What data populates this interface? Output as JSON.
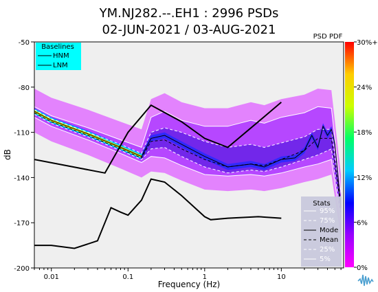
{
  "chart_data": {
    "type": "heatmap",
    "title_line1": "YM.NJ282.--.EH1 : 2996 PSDs",
    "title_line2": "02-JUN-2021 / 03-AUG-2021",
    "xlabel": "Frequency (Hz)",
    "ylabel": "dB",
    "x_scale": "log",
    "xlim": [
      0.006,
      65
    ],
    "ylim": [
      -200,
      -50
    ],
    "x_ticks": [
      {
        "value": 0.01,
        "label": "0.01"
      },
      {
        "value": 0.1,
        "label": "0.1"
      },
      {
        "value": 1,
        "label": "1"
      },
      {
        "value": 10,
        "label": "10"
      }
    ],
    "y_ticks": [
      {
        "value": -50,
        "label": "-50"
      },
      {
        "value": -80,
        "label": "-80"
      },
      {
        "value": -110,
        "label": "-110"
      },
      {
        "value": -140,
        "label": "-140"
      },
      {
        "value": -170,
        "label": "-170"
      },
      {
        "value": -200,
        "label": "-200"
      }
    ],
    "colorbar": {
      "label": "PSD PDF",
      "ticks": [
        "0%",
        "6%",
        "12%",
        "18%",
        "24%",
        "30%+"
      ],
      "stops": [
        "#ff00ff",
        "#9900ff",
        "#0000ff",
        "#00ccff",
        "#00ff66",
        "#ccff00",
        "#ffcc00",
        "#ff0000"
      ]
    },
    "baselines": {
      "title": "Baselines",
      "items": [
        "HNM",
        "LNM"
      ],
      "HNM": [
        [
          0.006,
          -128
        ],
        [
          0.05,
          -137
        ],
        [
          0.1,
          -110
        ],
        [
          0.2,
          -92
        ],
        [
          0.5,
          -103
        ],
        [
          1,
          -114
        ],
        [
          2,
          -120
        ],
        [
          5,
          -103
        ],
        [
          10,
          -90
        ]
      ],
      "LNM": [
        [
          0.006,
          -185
        ],
        [
          0.01,
          -185
        ],
        [
          0.02,
          -187
        ],
        [
          0.04,
          -182
        ],
        [
          0.06,
          -160
        ],
        [
          0.08,
          -163
        ],
        [
          0.1,
          -165
        ],
        [
          0.15,
          -155
        ],
        [
          0.2,
          -141
        ],
        [
          0.3,
          -143
        ],
        [
          0.5,
          -152
        ],
        [
          1,
          -166
        ],
        [
          1.2,
          -168
        ],
        [
          2,
          -167
        ],
        [
          5,
          -166
        ],
        [
          10,
          -167
        ]
      ]
    },
    "stats": {
      "title": "Stats",
      "items": [
        "95%",
        "75%",
        "Mode",
        "Mean",
        "25%",
        "5%"
      ]
    },
    "series": [
      {
        "name": "95%",
        "style": "solid-white",
        "values": [
          [
            0.006,
            -93
          ],
          [
            0.01,
            -99
          ],
          [
            0.03,
            -107
          ],
          [
            0.08,
            -115
          ],
          [
            0.15,
            -120
          ],
          [
            0.2,
            -100
          ],
          [
            0.3,
            -96
          ],
          [
            0.5,
            -102
          ],
          [
            1,
            -106
          ],
          [
            2,
            -106
          ],
          [
            4,
            -102
          ],
          [
            6,
            -104
          ],
          [
            10,
            -100
          ],
          [
            20,
            -97
          ],
          [
            30,
            -93
          ],
          [
            45,
            -94
          ],
          [
            60,
            -150
          ]
        ]
      },
      {
        "name": "75%",
        "style": "dashed-white",
        "values": [
          [
            0.006,
            -95
          ],
          [
            0.01,
            -101
          ],
          [
            0.03,
            -110
          ],
          [
            0.08,
            -118
          ],
          [
            0.15,
            -124
          ],
          [
            0.2,
            -110
          ],
          [
            0.3,
            -107
          ],
          [
            0.5,
            -110
          ],
          [
            1,
            -116
          ],
          [
            2,
            -120
          ],
          [
            4,
            -118
          ],
          [
            6,
            -120
          ],
          [
            10,
            -117
          ],
          [
            20,
            -113
          ],
          [
            30,
            -108
          ],
          [
            45,
            -108
          ],
          [
            60,
            -155
          ]
        ]
      },
      {
        "name": "Mode",
        "style": "solid-black",
        "values": [
          [
            0.006,
            -96
          ],
          [
            0.01,
            -102
          ],
          [
            0.03,
            -111
          ],
          [
            0.08,
            -120
          ],
          [
            0.15,
            -126
          ],
          [
            0.2,
            -114
          ],
          [
            0.3,
            -112
          ],
          [
            0.5,
            -118
          ],
          [
            1,
            -126
          ],
          [
            2,
            -133
          ],
          [
            4,
            -131
          ],
          [
            6,
            -133
          ],
          [
            10,
            -128
          ],
          [
            15,
            -127
          ],
          [
            20,
            -122
          ],
          [
            25,
            -112
          ],
          [
            30,
            -120
          ],
          [
            35,
            -106
          ],
          [
            40,
            -112
          ],
          [
            45,
            -108
          ],
          [
            50,
            -118
          ],
          [
            60,
            -160
          ]
        ]
      },
      {
        "name": "Mean",
        "style": "dashed-black",
        "values": [
          [
            0.006,
            -97
          ],
          [
            0.01,
            -103
          ],
          [
            0.03,
            -112
          ],
          [
            0.08,
            -121
          ],
          [
            0.15,
            -127
          ],
          [
            0.2,
            -116
          ],
          [
            0.3,
            -115
          ],
          [
            0.5,
            -121
          ],
          [
            1,
            -128
          ],
          [
            2,
            -133
          ],
          [
            4,
            -131
          ],
          [
            6,
            -132
          ],
          [
            10,
            -128
          ],
          [
            20,
            -122
          ],
          [
            30,
            -114
          ],
          [
            45,
            -114
          ],
          [
            60,
            -160
          ]
        ]
      },
      {
        "name": "25%",
        "style": "dashed-white",
        "values": [
          [
            0.006,
            -98
          ],
          [
            0.01,
            -104
          ],
          [
            0.03,
            -113
          ],
          [
            0.08,
            -122
          ],
          [
            0.15,
            -128
          ],
          [
            0.2,
            -121
          ],
          [
            0.3,
            -120
          ],
          [
            0.5,
            -126
          ],
          [
            1,
            -133
          ],
          [
            2,
            -137
          ],
          [
            4,
            -135
          ],
          [
            6,
            -136
          ],
          [
            10,
            -133
          ],
          [
            20,
            -128
          ],
          [
            30,
            -125
          ],
          [
            45,
            -121
          ],
          [
            60,
            -165
          ]
        ]
      },
      {
        "name": "5%",
        "style": "solid-white",
        "values": [
          [
            0.006,
            -100
          ],
          [
            0.01,
            -106
          ],
          [
            0.03,
            -115
          ],
          [
            0.08,
            -124
          ],
          [
            0.15,
            -130
          ],
          [
            0.2,
            -126
          ],
          [
            0.3,
            -127
          ],
          [
            0.5,
            -132
          ],
          [
            1,
            -138
          ],
          [
            2,
            -139
          ],
          [
            4,
            -138
          ],
          [
            6,
            -139
          ],
          [
            10,
            -137
          ],
          [
            20,
            -133
          ],
          [
            30,
            -131
          ],
          [
            45,
            -128
          ],
          [
            60,
            -170
          ]
        ]
      }
    ],
    "grid": false,
    "legend_positions": [
      "top-left",
      "bottom-right"
    ]
  }
}
